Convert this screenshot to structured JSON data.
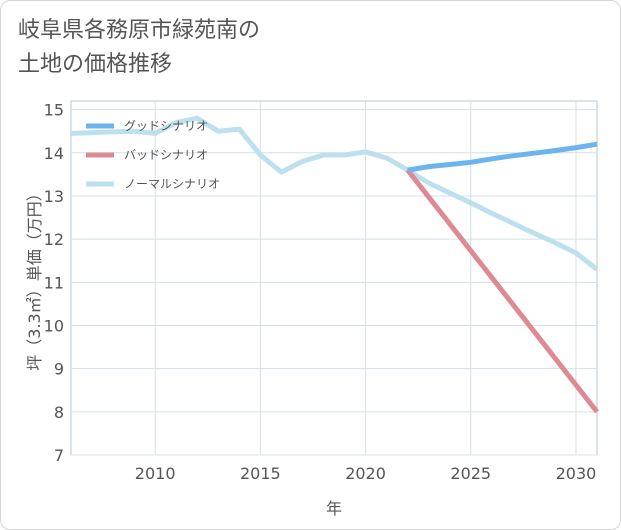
{
  "title_line1": "岐阜県各務原市緑苑南の",
  "title_line2": "土地の価格推移",
  "chart_data": {
    "type": "line",
    "xlabel": "年",
    "ylabel": "坪（3.3㎡）単価（万円）",
    "xlim": [
      2006,
      2031
    ],
    "ylim": [
      7,
      15.2
    ],
    "xticks": [
      2010,
      2015,
      2020,
      2025,
      2030
    ],
    "yticks": [
      7,
      8,
      9,
      10,
      11,
      12,
      13,
      14,
      15
    ],
    "grid": true,
    "legend_position": "top-left",
    "series": [
      {
        "name": "グッドシナリオ",
        "color": "#6cb4ee",
        "x": [
          2022,
          2023,
          2024,
          2025,
          2026,
          2027,
          2028,
          2029,
          2030,
          2031
        ],
        "y": [
          13.6,
          13.68,
          13.73,
          13.78,
          13.86,
          13.93,
          13.99,
          14.05,
          14.12,
          14.2
        ]
      },
      {
        "name": "バッドシナリオ",
        "color": "#de8a93",
        "x": [
          2022,
          2031
        ],
        "y": [
          13.6,
          8.0
        ]
      },
      {
        "name": "ノーマルシナリオ",
        "color": "#bde0ef",
        "x": [
          2006,
          2009,
          2010,
          2011,
          2012,
          2013,
          2014,
          2015,
          2016,
          2017,
          2018,
          2019,
          2020,
          2021,
          2022,
          2023,
          2024,
          2025,
          2026,
          2027,
          2028,
          2029,
          2030,
          2031
        ],
        "y": [
          14.45,
          14.5,
          14.45,
          14.7,
          14.8,
          14.5,
          14.55,
          13.95,
          13.55,
          13.8,
          13.95,
          13.95,
          14.02,
          13.88,
          13.6,
          13.3,
          13.07,
          12.84,
          12.6,
          12.37,
          12.14,
          11.92,
          11.68,
          11.3
        ]
      }
    ]
  }
}
